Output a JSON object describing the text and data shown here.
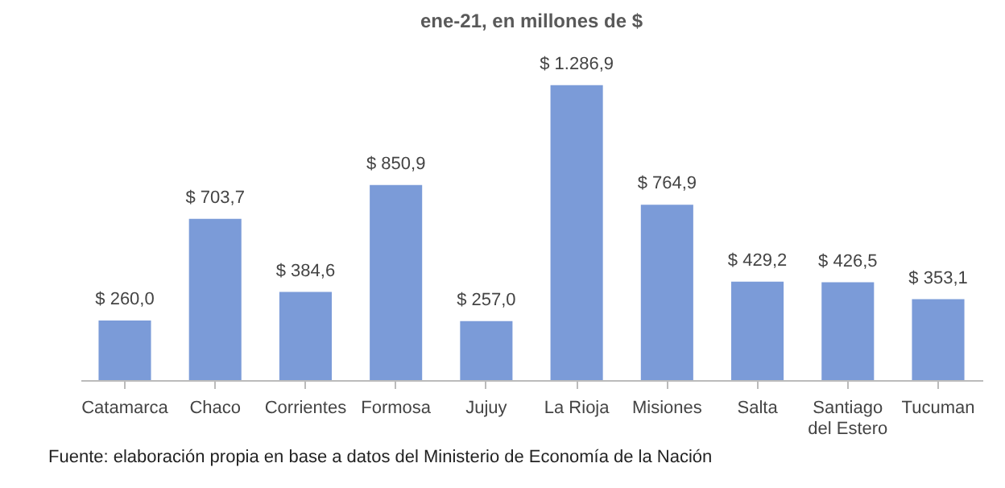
{
  "chart_data": {
    "type": "bar",
    "title": "ene-21, en millones de $",
    "categories": [
      "Catamarca",
      "Chaco",
      "Corrientes",
      "Formosa",
      "Jujuy",
      "La Rioja",
      "Misiones",
      "Salta",
      "Santiago del Estero",
      "Tucuman"
    ],
    "values": [
      260.0,
      703.7,
      384.6,
      850.9,
      257.0,
      1286.9,
      764.9,
      429.2,
      426.5,
      353.1
    ],
    "value_labels": [
      "$ 260,0",
      "$ 703,7",
      "$ 384,6",
      "$ 850,9",
      "$ 257,0",
      "$ 1.286,9",
      "$ 764,9",
      "$ 429,2",
      "$ 426,5",
      "$ 353,1"
    ],
    "color": "#7b9bd8",
    "grid": false,
    "annotations": [
      "Fuente: elaboración propia en base a datos del Ministerio de Economía de la Nación"
    ]
  }
}
